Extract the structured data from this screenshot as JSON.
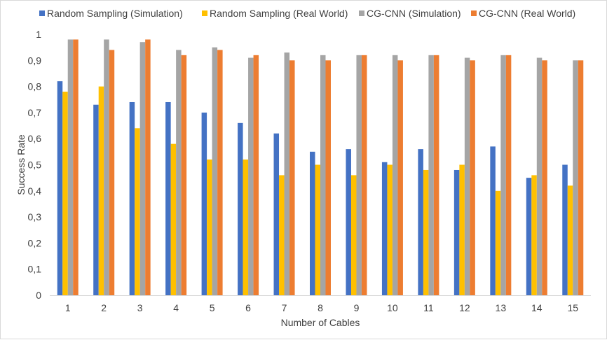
{
  "chart_data": {
    "type": "bar",
    "title": "",
    "xlabel": "Number of Cables",
    "ylabel": "Success Rate",
    "ylim": [
      0,
      1
    ],
    "ytick_step": 0.1,
    "ytick_labels": [
      "0",
      "0,1",
      "0,2",
      "0,3",
      "0,4",
      "0,5",
      "0,6",
      "0,7",
      "0,8",
      "0,9",
      "1"
    ],
    "grid": false,
    "legend_position": "top",
    "categories": [
      "1",
      "2",
      "3",
      "4",
      "5",
      "6",
      "7",
      "8",
      "9",
      "10",
      "11",
      "12",
      "13",
      "14",
      "15"
    ],
    "series": [
      {
        "name": "Random Sampling (Simulation)",
        "color": "#4472C4",
        "values": [
          0.82,
          0.73,
          0.74,
          0.74,
          0.7,
          0.66,
          0.62,
          0.55,
          0.56,
          0.51,
          0.56,
          0.48,
          0.57,
          0.45,
          0.5
        ]
      },
      {
        "name": "Random Sampling (Real World)",
        "color": "#FFC000",
        "values": [
          0.78,
          0.8,
          0.64,
          0.58,
          0.52,
          0.52,
          0.46,
          0.5,
          0.46,
          0.5,
          0.48,
          0.5,
          0.4,
          0.46,
          0.42
        ]
      },
      {
        "name": "CG-CNN (Simulation)",
        "color": "#A5A5A5",
        "values": [
          0.98,
          0.98,
          0.97,
          0.94,
          0.95,
          0.91,
          0.93,
          0.92,
          0.92,
          0.92,
          0.92,
          0.91,
          0.92,
          0.91,
          0.9
        ]
      },
      {
        "name": "CG-CNN (Real World)",
        "color": "#ED7D31",
        "values": [
          0.98,
          0.94,
          0.98,
          0.92,
          0.94,
          0.92,
          0.9,
          0.9,
          0.92,
          0.9,
          0.92,
          0.9,
          0.92,
          0.9,
          0.9
        ]
      }
    ]
  }
}
